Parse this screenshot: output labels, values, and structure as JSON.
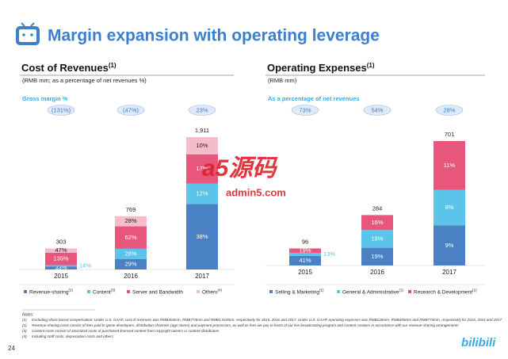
{
  "title": "Margin expansion with operating leverage",
  "page_number": "24",
  "logo": "bilibili",
  "watermark": {
    "brand": "a5源码",
    "site": "admin5.com"
  },
  "chart_data": [
    {
      "type": "bar",
      "stacked": true,
      "title": "Cost of Revenues",
      "title_note": "(1)",
      "subtitle": "(RMB mm; as a percentage of net revenues %)",
      "annotation_title": "Gross margin %",
      "annotations": {
        "values": [
          -131,
          -47,
          23
        ],
        "value_labels": [
          "(131%)",
          "(47%)",
          "23%"
        ]
      },
      "categories": [
        "2015",
        "2016",
        "2017"
      ],
      "totals": {
        "values": [
          303,
          769,
          1911
        ],
        "value_labels": [
          "303",
          "769",
          "1,911"
        ]
      },
      "series": [
        {
          "name": "Revenue-sharing",
          "note": "(2)",
          "color": "#4a80c4",
          "values": [
            33,
            29,
            38
          ],
          "value_labels": [
            "33%",
            "29%",
            "38%"
          ]
        },
        {
          "name": "Content",
          "note": "(3)",
          "color": "#5cc3ea",
          "values": [
            14,
            28,
            12
          ],
          "value_labels": [
            "14%",
            "28%",
            "12%"
          ]
        },
        {
          "name": "Server and Bandwidth",
          "color": "#e8567c",
          "values": [
            135,
            62,
            17
          ],
          "value_labels": [
            "135%",
            "62%",
            "17%"
          ]
        },
        {
          "name": "Others",
          "note": "(4)",
          "color": "#f6bccb",
          "values": [
            47,
            28,
            10
          ],
          "value_labels": [
            "47%",
            "28%",
            "10%"
          ]
        }
      ]
    },
    {
      "type": "bar",
      "stacked": true,
      "title": "Operating Expenses",
      "title_note": "(1)",
      "subtitle": "(RMB mm)",
      "annotation_title": "As a percentage of net revenues",
      "annotations": {
        "values": [
          73,
          54,
          28
        ],
        "value_labels": [
          "73%",
          "54%",
          "28%"
        ]
      },
      "categories": [
        "2015",
        "2016",
        "2017"
      ],
      "totals": {
        "values": [
          96,
          284,
          701
        ],
        "value_labels": [
          "96",
          "284",
          "701"
        ]
      },
      "series": [
        {
          "name": "Selling & Marketing",
          "note": "(1)",
          "color": "#4a80c4",
          "values": [
            41,
            19,
            9
          ],
          "value_labels": [
            "41%",
            "19%",
            "9%"
          ]
        },
        {
          "name": "General & Administrative",
          "note": "(1)",
          "color": "#5cc3ea",
          "values": [
            13,
            19,
            8
          ],
          "value_labels": [
            "13%",
            "19%",
            "8%"
          ]
        },
        {
          "name": "Research & Development",
          "note": "(1)",
          "color": "#e8567c",
          "values": [
            19,
            16,
            11
          ],
          "value_labels": [
            "19%",
            "16%",
            "11%"
          ]
        }
      ]
    }
  ],
  "notes": {
    "title": "Notes:",
    "items": [
      {
        "num": "(1)",
        "text": "Excluding share based compensation: Under U.S. GAAP, cost of revenues was RMB304mm, RMB773mm and RMB1,919mm, respectively for 2015, 2016 and 2017. Under U.S. GAAP, operating expenses was RMB128mm, RMB405mm and RMB773mm, respectively for 2015, 2016 and 2017"
      },
      {
        "num": "(2)",
        "text": "Revenue-sharing costs consist of fees paid to game developers, distribution channels (app stores) and payment processors, as well as fees we pay to hosts of our live broadcasting program and content creators in accordance with our revenue-sharing arrangements"
      },
      {
        "num": "(3)",
        "text": "Content costs consist of amortized costs of purchased licensed content from copyright owners or content distributors"
      },
      {
        "num": "(4)",
        "text": "Including staff costs, depreciation costs and others"
      }
    ]
  }
}
